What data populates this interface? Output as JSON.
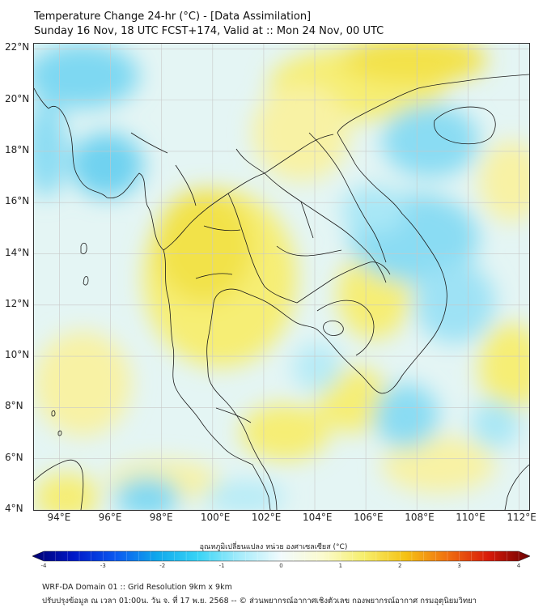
{
  "title": {
    "line1": "Temperature Change 24-hr (°C) - [Data Assimilation]",
    "line2": "Sunday 16 Nov, 18 UTC FCST+174, Valid at :: Mon 24 Nov, 00 UTC"
  },
  "map": {
    "lat_labels": [
      "22°N",
      "20°N",
      "18°N",
      "16°N",
      "14°N",
      "12°N",
      "10°N",
      "8°N",
      "6°N",
      "4°N"
    ],
    "lon_labels": [
      "94°E",
      "96°E",
      "98°E",
      "100°E",
      "102°E",
      "104°E",
      "106°E",
      "108°E",
      "110°E",
      "112°E"
    ],
    "lat_range": [
      4,
      22.2
    ],
    "lon_range": [
      93,
      112.4
    ],
    "land_color": "#f6f3d2",
    "sea_warm_color": "#fbf2a0",
    "cool_color": "#5fd0f0",
    "warm_color": "#f3e24a",
    "border_color": "#1a1a1a"
  },
  "colorbar": {
    "title": "อุณหภูมิเปลี่ยนแปลง หน่วย องศาเซลเซียส (°C)",
    "min": -4,
    "max": 4,
    "ticks": [
      "-4",
      "-3",
      "-2",
      "-1",
      "0",
      "1",
      "2",
      "3",
      "4"
    ],
    "tick_values": [
      -4,
      -3,
      -2,
      -1,
      0,
      1,
      2,
      3,
      4
    ],
    "stops": [
      "#000070",
      "#0018c8",
      "#0a58f0",
      "#10a8ec",
      "#38d4f6",
      "#a6ecfb",
      "#f2fbfd",
      "#fbfbcf",
      "#f6ee6c",
      "#f5c215",
      "#f07010",
      "#d81a0a",
      "#6a0000"
    ]
  },
  "footer": {
    "line1": "WRF-DA Domain 01 :: Grid Resolution 9km x 9km",
    "line2": "ปรับปรุงข้อมูล ณ เวลา 01:00น. วัน จ. ที่ 17 พ.ย. 2568 -- © ส่วนพยากรณ์อากาศเชิงตัวเลข กองพยากรณ์อากาศ กรมอุตุนิยมวิทยา"
  }
}
